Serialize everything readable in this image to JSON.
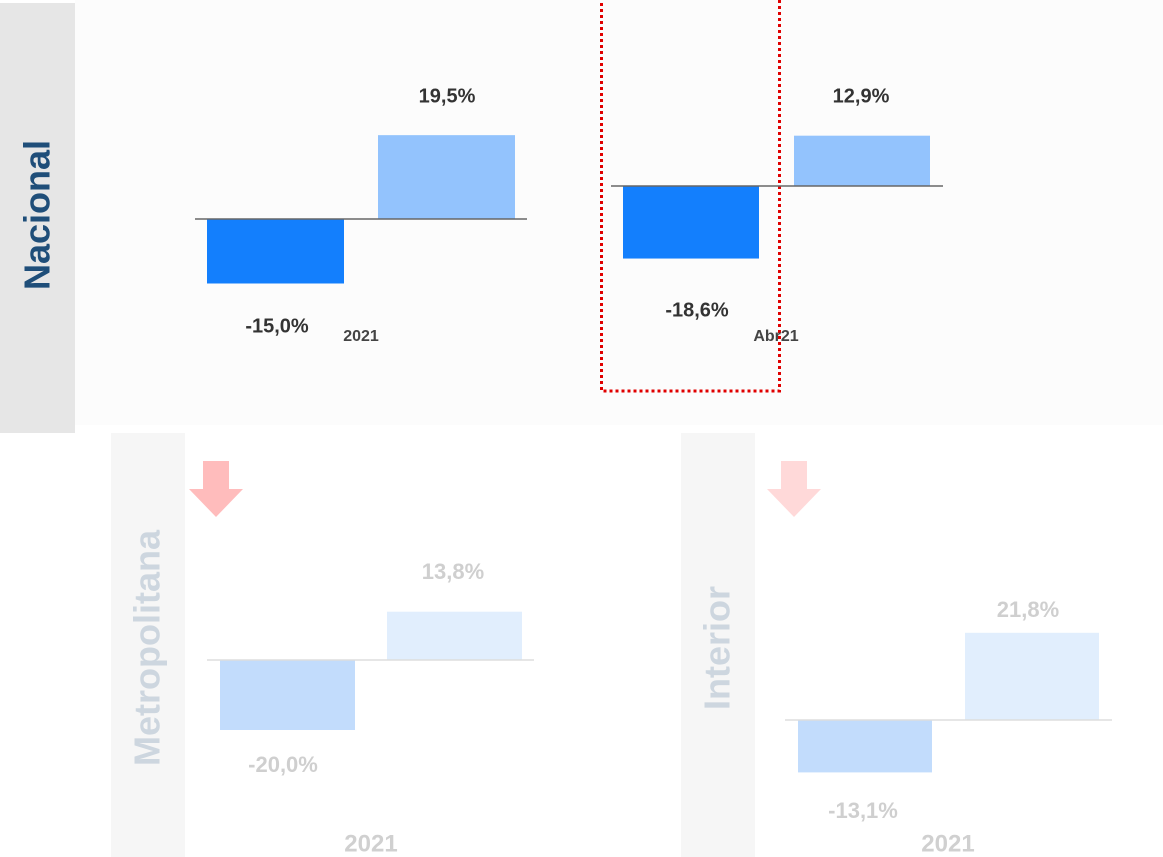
{
  "chart_data": [
    {
      "type": "bar",
      "title": "Nacional",
      "categories": [
        "2021"
      ],
      "series": [
        {
          "color": "#137ffd",
          "values": [
            -15.0
          ],
          "value_labels": [
            "-15,0%"
          ]
        },
        {
          "color": "#93c3fd",
          "values": [
            19.5
          ],
          "value_labels": [
            "19,5%"
          ]
        }
      ]
    },
    {
      "type": "bar",
      "categories": [
        "Abr21"
      ],
      "series": [
        {
          "color": "#137ffd",
          "values": [
            -18.6
          ],
          "value_labels": [
            "-18,6%"
          ]
        },
        {
          "color": "#93c3fd",
          "values": [
            12.9
          ],
          "value_labels": [
            "12,9%"
          ]
        }
      ]
    },
    {
      "type": "bar",
      "title": "Metropolitana",
      "categories": [
        "2021"
      ],
      "series": [
        {
          "color": "#c2dcfc",
          "values": [
            -20.0
          ],
          "value_labels": [
            "-20,0%"
          ]
        },
        {
          "color": "#e1eefd",
          "values": [
            13.8
          ],
          "value_labels": [
            "13,8%"
          ]
        }
      ]
    },
    {
      "type": "bar",
      "title": "Interior",
      "categories": [
        "2021"
      ],
      "series": [
        {
          "color": "#c2dcfc",
          "values": [
            -13.1
          ],
          "value_labels": [
            "-13,1%"
          ]
        },
        {
          "color": "#e1eefd",
          "values": [
            21.8
          ],
          "value_labels": [
            "21,8%"
          ]
        }
      ]
    }
  ]
}
